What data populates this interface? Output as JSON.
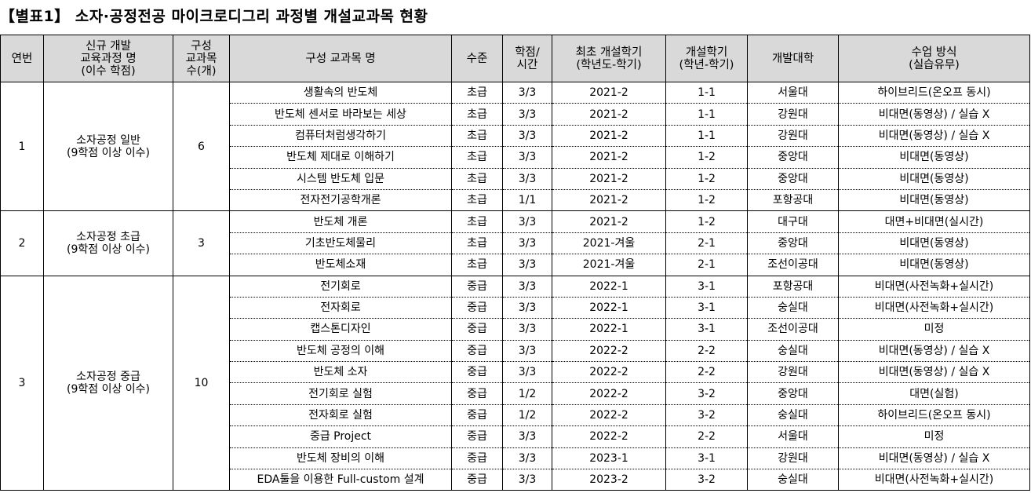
{
  "title": "【별표1】 소자·공정전공 마이크로디그리 과정별 개설교과목 현황",
  "headers": [
    "연번",
    "신규 개발\n교육과정 명\n(이수 학점)",
    "구성\n교과목\n수(개)",
    "구성 교과목 명",
    "수준",
    "학점/\n시간",
    "최초 개설학기\n(학년도-학기)",
    "개설학기\n(학년-학기)",
    "개발대학",
    "수업 방식\n(실습유무)"
  ],
  "groups": [
    {
      "no": "1",
      "course": "소자공정 일반\n(9학점 이상 이수)",
      "count": "6",
      "rows": [
        [
          "생활속의 반도체",
          "초급",
          "3/3",
          "2021-2",
          "1-1",
          "서울대",
          "하이브리드(온오프 동시)"
        ],
        [
          "반도체 센서로 바라보는 세상",
          "초급",
          "3/3",
          "2021-2",
          "1-1",
          "강원대",
          "비대면(동영상) / 실습 X"
        ],
        [
          "컴퓨터처럼생각하기",
          "초급",
          "3/3",
          "2021-2",
          "1-1",
          "강원대",
          "비대면(동영상) / 실습 X"
        ],
        [
          "반도체 제대로 이해하기",
          "초급",
          "3/3",
          "2021-2",
          "1-2",
          "중앙대",
          "비대면(동영상)"
        ],
        [
          "시스템 반도체 입문",
          "초급",
          "3/3",
          "2021-2",
          "1-2",
          "중앙대",
          "비대면(동영상)"
        ],
        [
          "전자전기공학개론",
          "초급",
          "1/1",
          "2021-2",
          "1-2",
          "포항공대",
          "비대면(동영상)"
        ]
      ]
    },
    {
      "no": "2",
      "course": "소자공정 초급\n(9학점 이상 이수)",
      "count": "3",
      "rows": [
        [
          "반도체 개론",
          "초급",
          "3/3",
          "2021-2",
          "1-2",
          "대구대",
          "대면+비대면(실시간)"
        ],
        [
          "기초반도체물리",
          "초급",
          "3/3",
          "2021-겨울",
          "2-1",
          "중앙대",
          "비대면(동영상)"
        ],
        [
          "반도체소재",
          "초급",
          "3/3",
          "2021-겨울",
          "2-1",
          "조선이공대",
          "비대면(동영상)"
        ]
      ]
    },
    {
      "no": "3",
      "course": "소자공정 중급\n(9학점 이상 이수)",
      "count": "10",
      "rows": [
        [
          "전기회로",
          "중급",
          "3/3",
          "2022-1",
          "3-1",
          "포항공대",
          "비대면(사전녹화+실시간)"
        ],
        [
          "전자회로",
          "중급",
          "3/3",
          "2022-1",
          "3-1",
          "숭실대",
          "비대면(사전녹화+실시간)"
        ],
        [
          "캡스톤디자인",
          "중급",
          "3/3",
          "2022-1",
          "3-1",
          "조선이공대",
          "미정"
        ],
        [
          "반도체 공정의 이해",
          "중급",
          "3/3",
          "2022-2",
          "2-2",
          "숭실대",
          "비대면(동영상) / 실습 X"
        ],
        [
          "반도체 소자",
          "중급",
          "3/3",
          "2022-2",
          "2-2",
          "강원대",
          "비대면(동영상) / 실습 X"
        ],
        [
          "전기회로 실험",
          "중급",
          "1/2",
          "2022-2",
          "3-2",
          "중앙대",
          "대면(실험)"
        ],
        [
          "전자회로 실험",
          "중급",
          "1/2",
          "2022-2",
          "3-2",
          "숭실대",
          "하이브리드(온오프 동시)"
        ],
        [
          "중급 Project",
          "중급",
          "3/3",
          "2022-2",
          "2-2",
          "서울대",
          "미정"
        ],
        [
          "반도체 장비의 이해",
          "중급",
          "3/3",
          "2023-1",
          "3-1",
          "강원대",
          "비대면(동영상) / 실습 X"
        ],
        [
          "EDA툴을 이용한 Full-custom 설계",
          "중급",
          "3/3",
          "2023-2",
          "3-2",
          "숭실대",
          "비대면(사전녹화+실시간)"
        ]
      ]
    }
  ]
}
